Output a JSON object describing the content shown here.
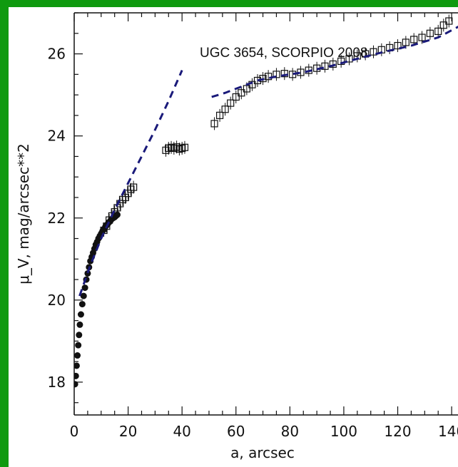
{
  "chart_data": {
    "type": "scatter",
    "title": "UGC 3654, SCORPIO 2008",
    "xlabel": "a, arcsec",
    "ylabel": "μ_V, mag/arcsec**2",
    "xlim": [
      0,
      145
    ],
    "ylim": [
      27,
      17.2
    ],
    "y_inverted": true,
    "xticks": [
      0,
      20,
      40,
      60,
      80,
      100,
      120,
      140
    ],
    "yticks": [
      18,
      20,
      22,
      24,
      26
    ],
    "grid": false,
    "colors": {
      "points": "#111111",
      "fit": "#1a1a7a",
      "background": "#0f9a0f"
    },
    "series": [
      {
        "marker": "filled-circle",
        "x": [
          0.3,
          0.6,
          0.9,
          1.2,
          1.5,
          1.8,
          2.1,
          2.5,
          3.0,
          3.5,
          4.0,
          4.5,
          5.0,
          5.5,
          6.0,
          6.5,
          7.0,
          7.5,
          8.0,
          8.5,
          9.0,
          9.5,
          10.0,
          10.5,
          11.0,
          11.5,
          12.0,
          12.5,
          13.0,
          13.5,
          14.0,
          14.5,
          15.0,
          15.5,
          16.0
        ],
        "y": [
          17.95,
          18.15,
          18.4,
          18.65,
          18.9,
          19.15,
          19.4,
          19.65,
          19.9,
          20.1,
          20.3,
          20.5,
          20.65,
          20.8,
          20.95,
          21.05,
          21.15,
          21.25,
          21.35,
          21.42,
          21.5,
          21.56,
          21.62,
          21.68,
          21.72,
          21.78,
          21.82,
          21.86,
          21.9,
          21.94,
          21.98,
          22.0,
          22.02,
          22.05,
          22.08
        ]
      },
      {
        "marker": "open-square",
        "x": [
          11,
          12,
          13,
          14,
          15,
          16,
          17,
          18,
          19,
          20,
          21,
          22,
          34,
          35,
          36,
          37,
          38,
          39,
          40,
          41,
          52,
          54,
          56,
          58,
          60,
          62,
          64,
          66,
          68,
          70,
          72,
          75,
          78,
          81,
          84,
          87,
          90,
          93,
          96,
          99,
          102,
          105,
          108,
          111,
          114,
          117,
          120,
          123,
          126,
          129,
          132,
          135,
          137,
          139
        ],
        "y": [
          21.7,
          21.8,
          21.95,
          22.05,
          22.15,
          22.25,
          22.35,
          22.45,
          22.5,
          22.6,
          22.7,
          22.75,
          23.65,
          23.7,
          23.72,
          23.7,
          23.73,
          23.68,
          23.7,
          23.72,
          24.3,
          24.5,
          24.65,
          24.8,
          24.95,
          25.05,
          25.15,
          25.25,
          25.35,
          25.4,
          25.45,
          25.5,
          25.52,
          25.5,
          25.55,
          25.6,
          25.65,
          25.7,
          25.75,
          25.82,
          25.88,
          25.95,
          26.0,
          26.05,
          26.1,
          26.15,
          26.2,
          26.28,
          26.35,
          26.4,
          26.5,
          26.55,
          26.7,
          26.8
        ]
      },
      {
        "marker": "dashed-line",
        "x": [
          2,
          6,
          10,
          15,
          20,
          25,
          30,
          35,
          40
        ],
        "y": [
          20.1,
          20.85,
          21.5,
          22.2,
          22.85,
          23.5,
          24.15,
          24.85,
          25.6
        ]
      },
      {
        "marker": "dashed-line",
        "x": [
          51,
          56,
          62,
          68,
          75,
          85,
          95,
          105,
          115,
          125,
          135,
          145
        ],
        "y": [
          24.95,
          25.05,
          25.2,
          25.35,
          25.45,
          25.55,
          25.7,
          25.88,
          26.05,
          26.2,
          26.4,
          26.75
        ]
      }
    ]
  }
}
